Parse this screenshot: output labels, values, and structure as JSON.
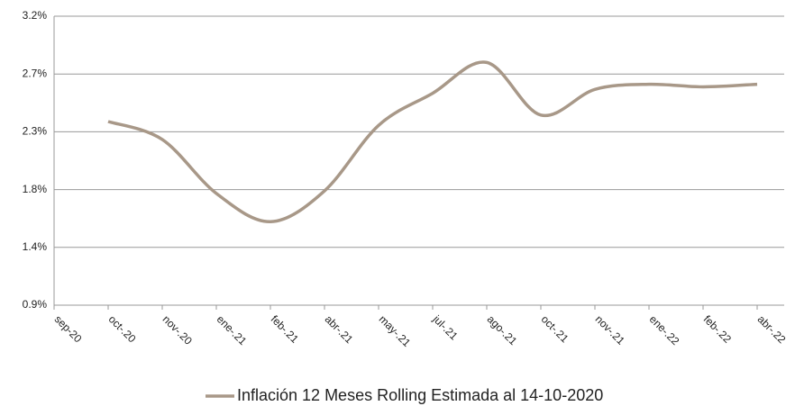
{
  "chart_data": {
    "type": "line",
    "categories": [
      "sep-20",
      "oct-.20",
      "nov-.20",
      "ene-.21",
      "feb-.21",
      "abr-.21",
      "may-.21",
      "jul-.21",
      "ago-.21",
      "oct-.21",
      "nov-.21",
      "ene-.22",
      "feb-.22",
      "abr-.22"
    ],
    "series": [
      {
        "name": "Inflación 12 Meses Rolling Estimada al 14-10-2020",
        "color": "#a89888",
        "values": [
          null,
          2.33,
          2.19,
          1.77,
          1.55,
          1.79,
          2.3,
          2.55,
          2.79,
          2.38,
          2.58,
          2.62,
          2.6,
          2.62
        ]
      }
    ],
    "ylim": [
      0.9,
      3.15
    ],
    "yticks": [
      {
        "value": 0.9,
        "label": "0.9%"
      },
      {
        "value": 1.35,
        "label": "1.4%"
      },
      {
        "value": 1.8,
        "label": "1.8%"
      },
      {
        "value": 2.25,
        "label": "2.3%"
      },
      {
        "value": 2.7,
        "label": "2.7%"
      },
      {
        "value": 3.15,
        "label": "3.2%"
      }
    ],
    "grid": true,
    "legend": "bottom"
  }
}
